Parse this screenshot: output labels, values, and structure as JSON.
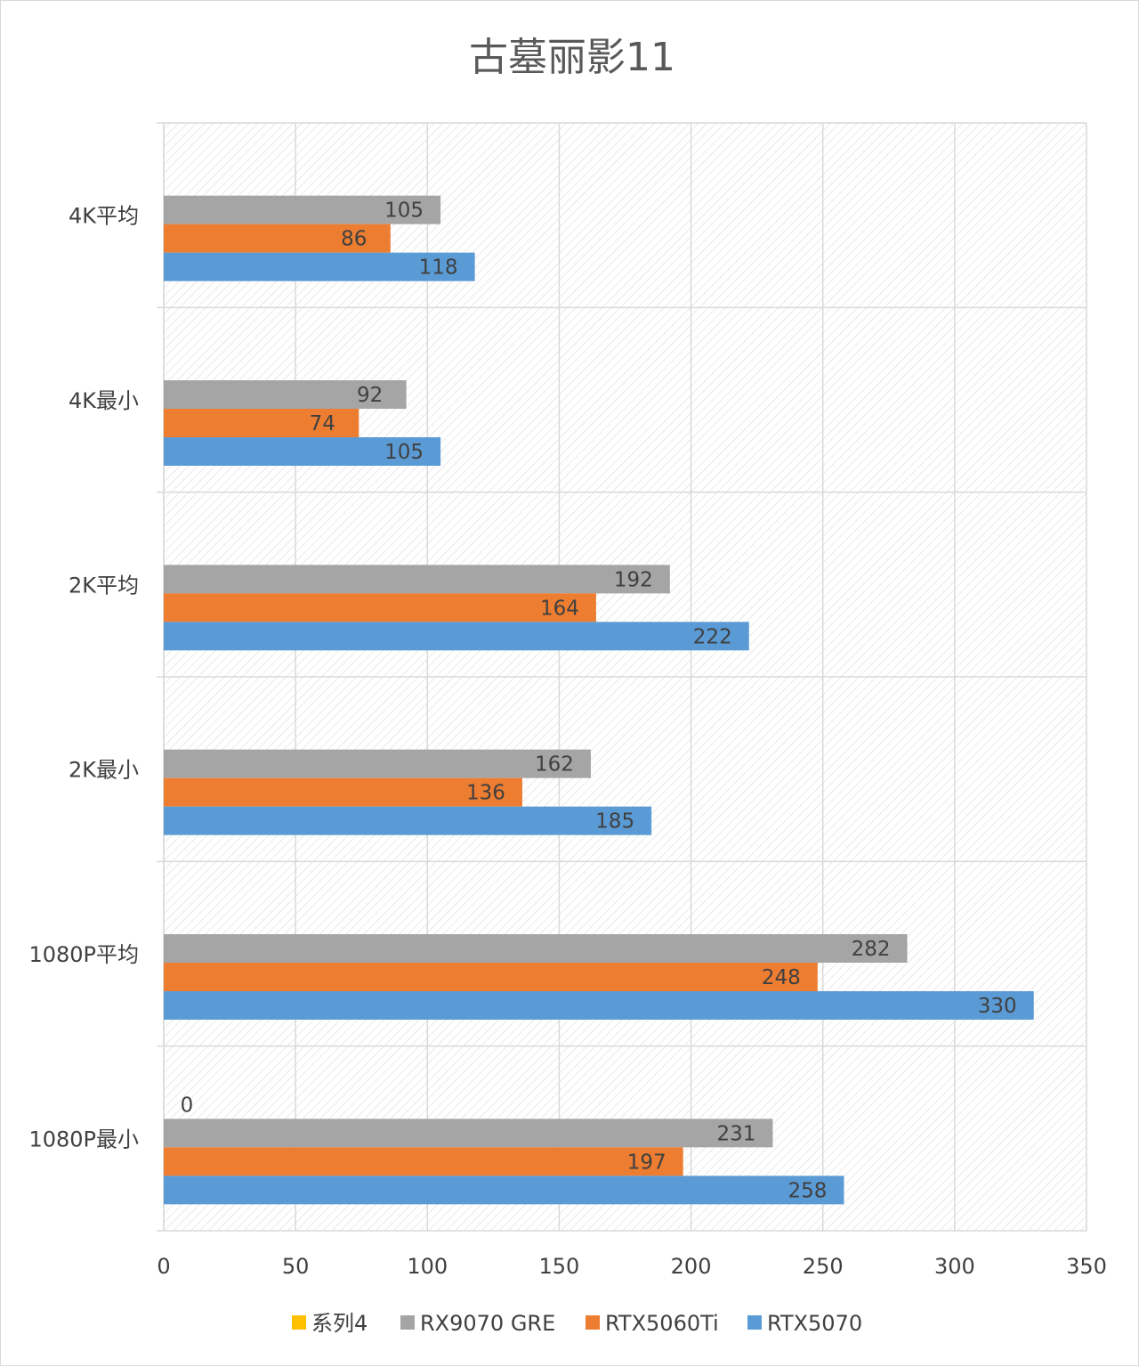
{
  "chart_data": {
    "type": "bar",
    "orientation": "horizontal",
    "title": "古墓丽影11",
    "xlabel": "",
    "ylabel": "",
    "xlim": [
      0,
      350
    ],
    "x_ticks": [
      0,
      50,
      100,
      150,
      200,
      250,
      300,
      350
    ],
    "grid": true,
    "legend_position": "bottom",
    "categories": [
      "4K平均",
      "4K最小",
      "2K平均",
      "2K最小",
      "1080P平均",
      "1080P最小"
    ],
    "series": [
      {
        "name": "系列4",
        "color": "#FFC000",
        "values": [
          null,
          null,
          null,
          null,
          null,
          0
        ]
      },
      {
        "name": "RX9070 GRE",
        "color": "#A5A5A5",
        "values": [
          105,
          92,
          192,
          162,
          282,
          231
        ]
      },
      {
        "name": "RTX5060Ti",
        "color": "#ED7D31",
        "values": [
          86,
          74,
          164,
          136,
          248,
          197
        ]
      },
      {
        "name": "RTX5070",
        "color": "#5B9BD5",
        "values": [
          118,
          105,
          222,
          185,
          330,
          258
        ]
      }
    ]
  }
}
